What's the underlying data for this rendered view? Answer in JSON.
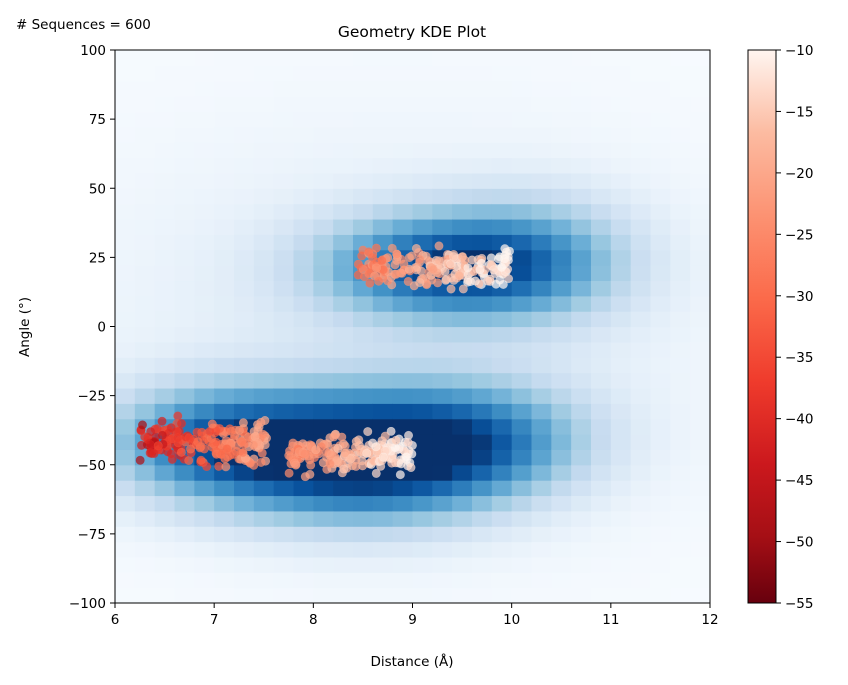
{
  "chart_data": {
    "type": "heatmap",
    "title": "Geometry KDE Plot",
    "annotation": "# Sequences = 600",
    "xlabel": "Distance (Å)",
    "ylabel": "Angle (°)",
    "xlim": [
      6,
      12
    ],
    "ylim": [
      -100,
      100
    ],
    "xticks": [
      "6",
      "7",
      "8",
      "9",
      "10",
      "11",
      "12"
    ],
    "yticks": [
      "100",
      "75",
      "50",
      "25",
      "0",
      "−25",
      "−50",
      "−75",
      "−100"
    ],
    "background_heatmap": {
      "colormap": "Blues",
      "grid": [
        30,
        36
      ],
      "density_components": [
        {
          "center_x": 8.5,
          "center_y": -47,
          "sx": 1.0,
          "sy": 16,
          "weight": 1.0
        },
        {
          "center_x": 7.0,
          "center_y": -42,
          "sx": 0.8,
          "sy": 14,
          "weight": 0.62
        },
        {
          "center_x": 9.7,
          "center_y": -40,
          "sx": 0.8,
          "sy": 14,
          "weight": 0.45
        },
        {
          "center_x": 9.3,
          "center_y": 22,
          "sx": 0.85,
          "sy": 13,
          "weight": 0.78
        },
        {
          "center_x": 10.3,
          "center_y": 25,
          "sx": 0.7,
          "sy": 16,
          "weight": 0.35
        },
        {
          "center_x": 8.8,
          "center_y": 0,
          "sx": 2.2,
          "sy": 50,
          "weight": 0.12
        }
      ]
    },
    "scatter": {
      "colormap": "Reds_r",
      "color_label_range": [
        -55,
        -10
      ],
      "clusters": [
        {
          "name": "cluster-short",
          "x_range": [
            6.25,
            7.55
          ],
          "y_center": -42,
          "y_spread": 7,
          "count": 200,
          "score_range": [
            -50,
            -20
          ]
        },
        {
          "name": "cluster-mid",
          "x_range": [
            7.75,
            9.0
          ],
          "y_center": -46,
          "y_spread": 6,
          "count": 200,
          "score_range": [
            -30,
            -10
          ]
        },
        {
          "name": "cluster-upper",
          "x_range": [
            8.45,
            10.0
          ],
          "y_center": 21,
          "y_spread": 6,
          "count": 200,
          "score_range": [
            -32,
            -10
          ]
        }
      ]
    },
    "colorbar": {
      "min": -55,
      "max": -10,
      "ticks": [
        "−10",
        "−15",
        "−20",
        "−25",
        "−30",
        "−35",
        "−40",
        "−45",
        "−50",
        "−55"
      ]
    }
  }
}
